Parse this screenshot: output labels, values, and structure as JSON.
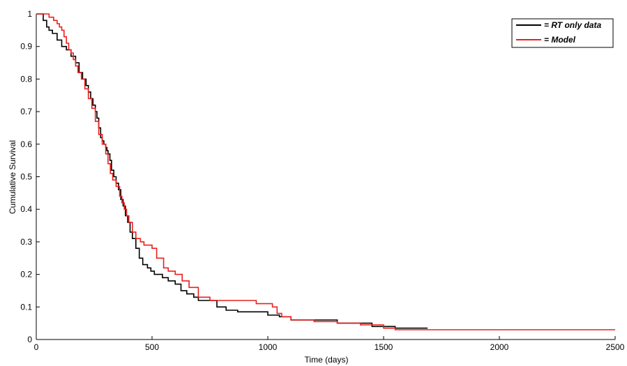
{
  "chart_data": {
    "type": "line",
    "title": "",
    "xlabel": "Time (days)",
    "ylabel": "Cumulative Survival",
    "xlim": [
      0,
      2500
    ],
    "ylim": [
      0,
      1
    ],
    "grid": false,
    "legend": {
      "placement": "top-right"
    },
    "x_ticks": [
      0,
      500,
      1000,
      1500,
      2000,
      2500
    ],
    "y_ticks": [
      0,
      0.1,
      0.2,
      0.3,
      0.4,
      0.5,
      0.6,
      0.7,
      0.8,
      0.9,
      1
    ],
    "series": [
      {
        "name": "= RT only data",
        "color": "#000000",
        "step": true,
        "x": [
          0,
          30,
          45,
          55,
          70,
          90,
          110,
          130,
          150,
          170,
          185,
          200,
          215,
          225,
          235,
          245,
          255,
          262,
          270,
          278,
          285,
          292,
          300,
          305,
          310,
          318,
          325,
          335,
          345,
          355,
          365,
          375,
          385,
          395,
          405,
          415,
          430,
          445,
          460,
          480,
          495,
          510,
          525,
          545,
          570,
          600,
          625,
          650,
          680,
          700,
          740,
          780,
          820,
          870,
          920,
          1000,
          1050,
          1100,
          1200,
          1300,
          1450,
          1550,
          1690
        ],
        "y": [
          1,
          0.98,
          0.96,
          0.95,
          0.94,
          0.92,
          0.9,
          0.89,
          0.87,
          0.85,
          0.82,
          0.8,
          0.78,
          0.76,
          0.74,
          0.72,
          0.7,
          0.68,
          0.65,
          0.62,
          0.61,
          0.6,
          0.59,
          0.58,
          0.57,
          0.55,
          0.52,
          0.5,
          0.48,
          0.46,
          0.43,
          0.41,
          0.38,
          0.36,
          0.33,
          0.31,
          0.28,
          0.25,
          0.23,
          0.22,
          0.21,
          0.2,
          0.2,
          0.19,
          0.18,
          0.17,
          0.15,
          0.14,
          0.13,
          0.12,
          0.12,
          0.1,
          0.09,
          0.085,
          0.085,
          0.075,
          0.07,
          0.06,
          0.06,
          0.05,
          0.04,
          0.035,
          0.035
        ]
      },
      {
        "name": "= Model",
        "color": "#e8201e",
        "step": true,
        "x": [
          0,
          55,
          75,
          90,
          100,
          110,
          120,
          130,
          140,
          150,
          160,
          170,
          180,
          195,
          210,
          225,
          240,
          255,
          270,
          285,
          300,
          310,
          320,
          330,
          345,
          360,
          370,
          380,
          390,
          400,
          415,
          430,
          450,
          465,
          480,
          500,
          520,
          550,
          570,
          600,
          630,
          660,
          700,
          750,
          800,
          850,
          900,
          950,
          1000,
          1020,
          1040,
          1060,
          1100,
          1200,
          1300,
          1400,
          1500,
          1550,
          1700,
          2000,
          2500
        ],
        "y": [
          1,
          0.99,
          0.98,
          0.97,
          0.96,
          0.95,
          0.93,
          0.91,
          0.89,
          0.88,
          0.86,
          0.84,
          0.82,
          0.8,
          0.77,
          0.74,
          0.71,
          0.67,
          0.63,
          0.6,
          0.57,
          0.54,
          0.51,
          0.49,
          0.47,
          0.44,
          0.42,
          0.4,
          0.38,
          0.36,
          0.33,
          0.31,
          0.3,
          0.29,
          0.29,
          0.28,
          0.25,
          0.22,
          0.21,
          0.2,
          0.18,
          0.16,
          0.13,
          0.12,
          0.12,
          0.12,
          0.12,
          0.11,
          0.11,
          0.1,
          0.08,
          0.07,
          0.06,
          0.055,
          0.05,
          0.045,
          0.035,
          0.03,
          0.03,
          0.03,
          0.03
        ]
      }
    ]
  }
}
